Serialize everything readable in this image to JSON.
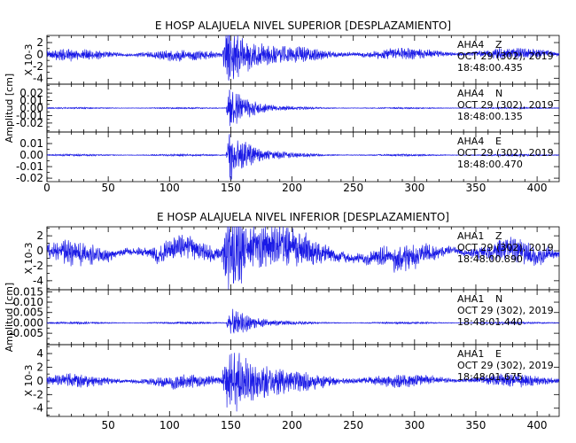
{
  "chart_data": [
    {
      "type": "line",
      "title": "E HOSP ALAJUELA NIVEL SUPERIOR [DESPLAZAMIENTO]",
      "ylabel": "Amplitud [cm]",
      "xlim": [
        0,
        418
      ],
      "xticks": [
        0,
        50,
        100,
        150,
        200,
        250,
        300,
        350,
        400
      ],
      "series_color": "#1a1ae6",
      "panels": [
        {
          "name": "AHA4 Z",
          "station": "AHA4",
          "component": "Z",
          "date": "OCT 29 (302), 2019",
          "time": "18:48:00.435",
          "scale_label": "X 10-3",
          "ylim": [
            -5,
            3.2
          ],
          "yticks": [
            -4,
            -2,
            0,
            2
          ],
          "ytick_labels": [
            "-4",
            "-2",
            "0",
            "2"
          ],
          "envelope": {
            "noise": 0.55,
            "peak": 4.2,
            "onset": 143,
            "peak_time": 147,
            "decay": 22,
            "drift": 0.4
          }
        },
        {
          "name": "AHA4 N",
          "station": "AHA4",
          "component": "N",
          "date": "OCT 29 (302), 2019",
          "time": "18:48:00.135",
          "scale_label": "",
          "ylim": [
            -0.032,
            0.032
          ],
          "yticks": [
            -0.02,
            -0.01,
            0.0,
            0.01,
            0.02
          ],
          "ytick_labels": [
            "-0.02",
            "-0.01",
            "0.00",
            "0.01",
            "0.02"
          ],
          "envelope": {
            "noise": 0.0007,
            "peak": 0.027,
            "onset": 146,
            "peak_time": 149,
            "decay": 16,
            "drift": 0
          }
        },
        {
          "name": "AHA4 E",
          "station": "AHA4",
          "component": "E",
          "date": "OCT 29 (302), 2019",
          "time": "18:48:00.470",
          "scale_label": "",
          "ylim": [
            -0.023,
            0.02
          ],
          "yticks": [
            -0.02,
            -0.01,
            0.0,
            0.01
          ],
          "ytick_labels": [
            "-0.02",
            "-0.01",
            "0.00",
            "0.01"
          ],
          "envelope": {
            "noise": 0.0006,
            "peak": 0.02,
            "onset": 146,
            "peak_time": 149,
            "decay": 18,
            "drift": 0
          }
        }
      ]
    },
    {
      "type": "line",
      "title": "E HOSP ALAJUELA NIVEL INFERIOR [DESPLAZAMIENTO]",
      "ylabel": "Amplitud [cm]",
      "xlim": [
        0,
        418
      ],
      "xticks": [
        50,
        100,
        150,
        200,
        250,
        300,
        350,
        400
      ],
      "series_color": "#1a1ae6",
      "panels": [
        {
          "name": "AHA1 Z",
          "station": "AHA1",
          "component": "Z",
          "date": "OCT 29 (302), 2019",
          "time": "18:48:00.890",
          "scale_label": "X 10-3",
          "ylim": [
            -5.2,
            3.2
          ],
          "yticks": [
            -4,
            -2,
            0,
            2
          ],
          "ytick_labels": [
            "-4",
            "-2",
            "0",
            "2"
          ],
          "envelope": {
            "noise": 0.9,
            "peak": 4.8,
            "onset": 142,
            "peak_time": 149,
            "decay": 28,
            "drift": 0.7
          }
        },
        {
          "name": "AHA1 N",
          "station": "AHA1",
          "component": "N",
          "date": "OCT 29 (302), 2019",
          "time": "18:48:01.440",
          "scale_label": "",
          "ylim": [
            -0.0105,
            0.016
          ],
          "yticks": [
            -0.005,
            0.0,
            0.005,
            0.01,
            0.015
          ],
          "ytick_labels": [
            "-0.005",
            "0.000",
            "0.005",
            "0.010",
            "0.015"
          ],
          "envelope": {
            "noise": 0.00035,
            "peak": 0.0085,
            "onset": 146,
            "peak_time": 150,
            "decay": 14,
            "drift": 0
          }
        },
        {
          "name": "AHA1 E",
          "station": "AHA1",
          "component": "E",
          "date": "OCT 29 (302), 2019",
          "time": "18:48:01.675",
          "scale_label": "X 10-3",
          "ylim": [
            -5.2,
            5.3
          ],
          "yticks": [
            -4,
            -2,
            0,
            2,
            4
          ],
          "ytick_labels": [
            "-4",
            "-2",
            "0",
            "2",
            "4"
          ],
          "envelope": {
            "noise": 0.55,
            "peak": 4.6,
            "onset": 142,
            "peak_time": 149,
            "decay": 26,
            "drift": 0.3
          }
        }
      ]
    }
  ]
}
